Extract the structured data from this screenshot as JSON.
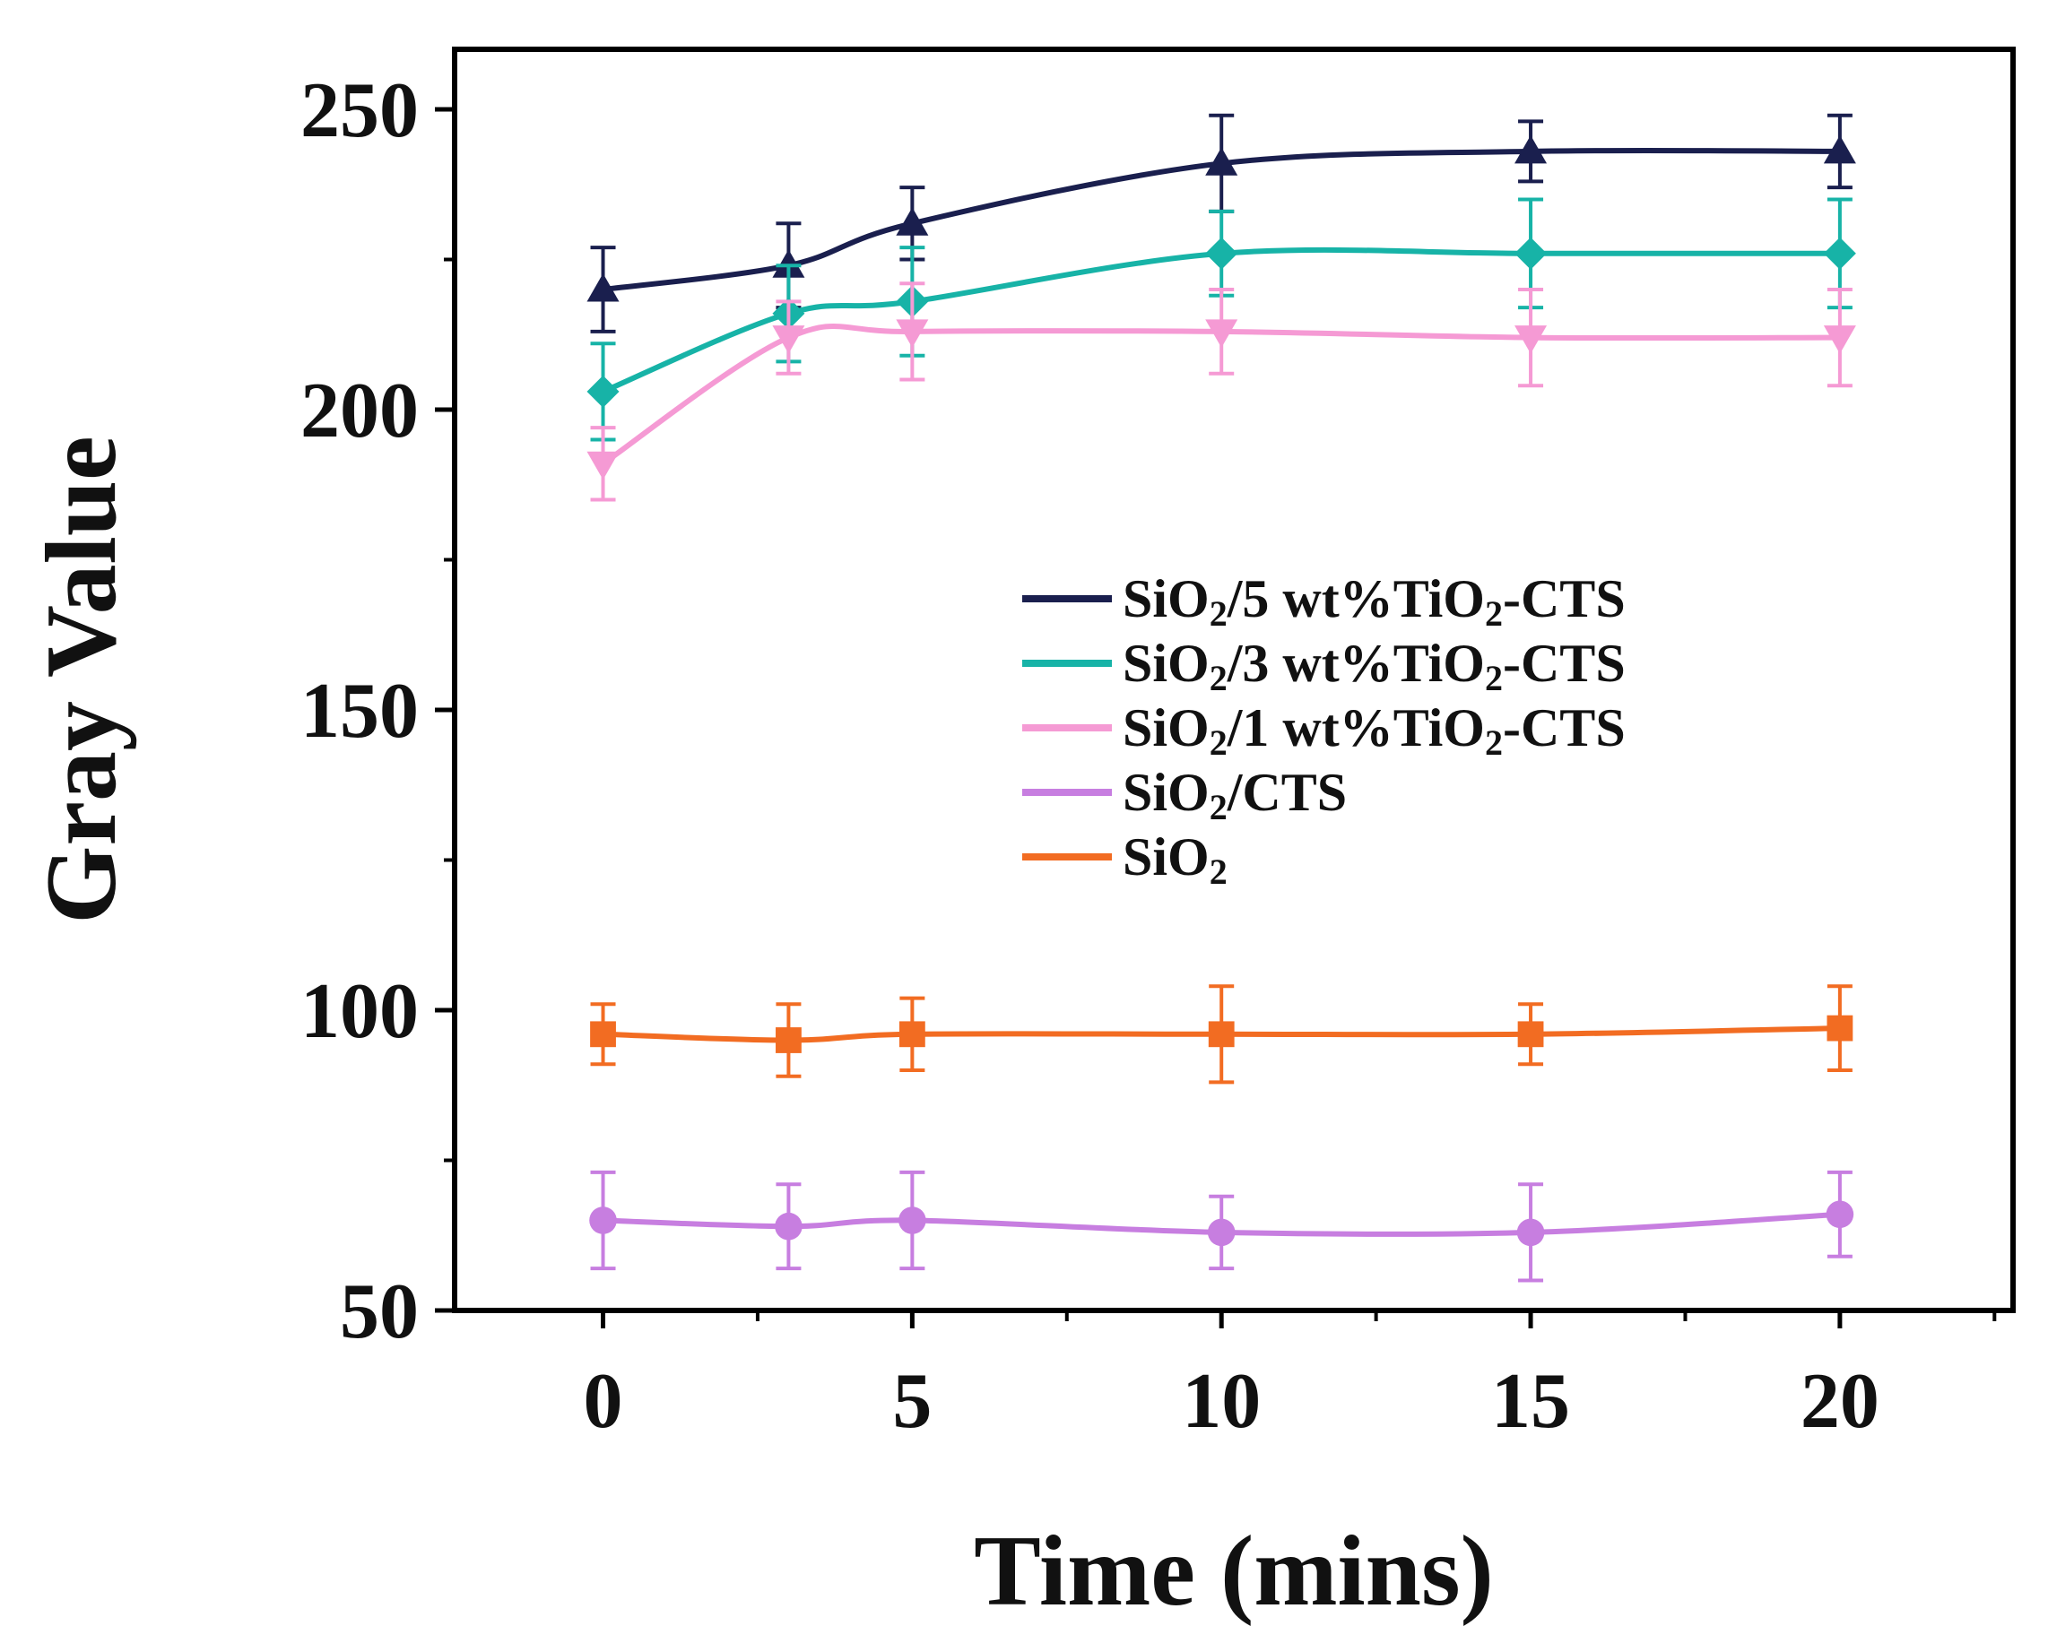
{
  "chart_data": {
    "type": "line",
    "title": "",
    "xlabel": "Time (mins)",
    "ylabel": "Gray Value",
    "xlim": [
      -2.4,
      22.8
    ],
    "ylim": [
      50,
      260
    ],
    "xticks": [
      0,
      5,
      10,
      15,
      20
    ],
    "xtick_labels": [
      "0",
      "5",
      "10",
      "15",
      "20"
    ],
    "yticks": [
      50,
      100,
      150,
      200,
      250
    ],
    "ytick_labels": [
      "50",
      "100",
      "150",
      "200",
      "250"
    ],
    "grid": false,
    "legend_position": "center-right",
    "x": [
      0,
      3,
      5,
      10,
      15,
      20
    ],
    "series": [
      {
        "name": "SiO2/5 wt%TiO2-CTS",
        "legend_parts": [
          "SiO",
          "2",
          "/5 wt%TiO",
          "2",
          "-CTS"
        ],
        "color": "#1a1f4e",
        "marker": "triangle-up",
        "values": [
          220,
          224,
          231,
          241,
          243,
          243
        ],
        "errors": [
          7,
          7,
          6,
          8,
          5,
          6
        ]
      },
      {
        "name": "SiO2/3 wt%TiO2-CTS",
        "legend_parts": [
          "SiO",
          "2",
          "/3 wt%TiO",
          "2",
          "-CTS"
        ],
        "color": "#17b3a7",
        "marker": "diamond",
        "values": [
          203,
          216,
          218,
          226,
          226,
          226
        ],
        "errors": [
          8,
          8,
          9,
          7,
          9,
          9
        ]
      },
      {
        "name": "SiO2/1 wt%TiO2-CTS",
        "legend_parts": [
          "SiO",
          "2",
          "/1 wt%TiO",
          "2",
          "-CTS"
        ],
        "color": "#f59ad4",
        "marker": "triangle-down",
        "values": [
          191,
          212,
          213,
          213,
          212,
          212
        ],
        "errors": [
          6,
          6,
          8,
          7,
          8,
          8
        ]
      },
      {
        "name": "SiO2/CTS",
        "legend_parts": [
          "SiO",
          "2",
          "/CTS"
        ],
        "color": "#c77ee0",
        "marker": "circle",
        "values": [
          65,
          64,
          65,
          63,
          63,
          66
        ],
        "errors": [
          8,
          7,
          8,
          6,
          8,
          7
        ]
      },
      {
        "name": "SiO2",
        "legend_parts": [
          "SiO",
          "2"
        ],
        "color": "#f26c22",
        "marker": "square",
        "values": [
          96,
          95,
          96,
          96,
          96,
          97
        ],
        "errors": [
          5,
          6,
          6,
          8,
          5,
          7
        ]
      }
    ]
  }
}
